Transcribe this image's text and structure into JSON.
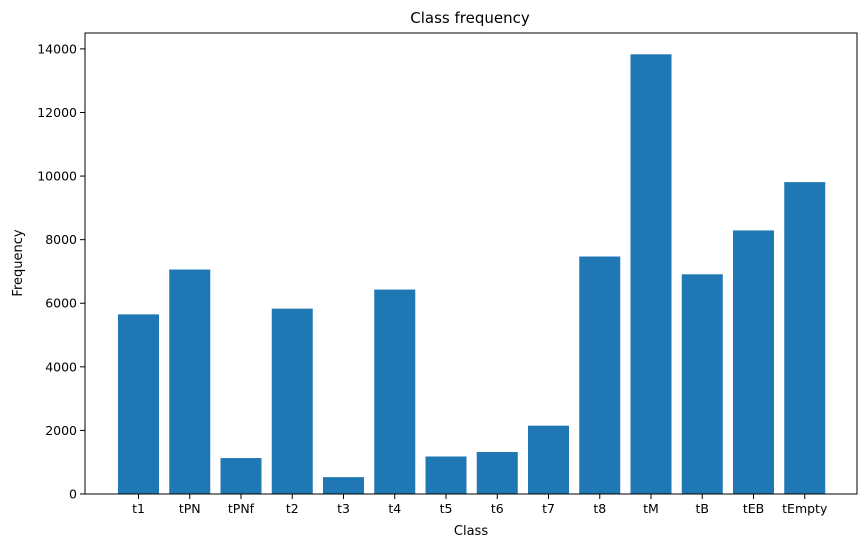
{
  "chart_data": {
    "type": "bar",
    "title": "Class frequency",
    "xlabel": "Class",
    "ylabel": "Frequency",
    "categories": [
      "t1",
      "tPN",
      "tPNf",
      "t2",
      "t3",
      "t4",
      "t5",
      "t6",
      "t7",
      "t8",
      "tM",
      "tB",
      "tEB",
      "tEmpty"
    ],
    "values": [
      5650,
      7060,
      1130,
      5830,
      530,
      6430,
      1180,
      1320,
      2150,
      7470,
      13830,
      6910,
      8290,
      9810
    ],
    "ylim": [
      0,
      14500
    ],
    "yticks": [
      0,
      2000,
      4000,
      6000,
      8000,
      10000,
      12000,
      14000
    ],
    "bar_color": "#1f77b4",
    "grid": false,
    "legend": false
  }
}
